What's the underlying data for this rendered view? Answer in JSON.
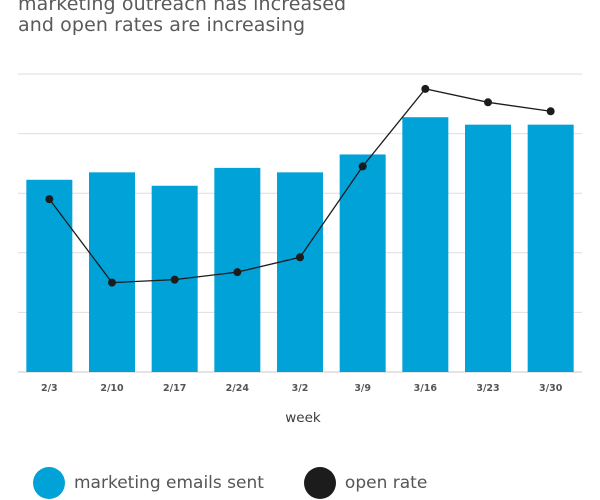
{
  "chart_data": {
    "type": "bar",
    "title_lines": [
      "marketing outreach has increased",
      "and open rates are increasing"
    ],
    "xlabel": "week",
    "ylabel": "",
    "categories": [
      "2/3",
      "2/10",
      "2/17",
      "2/24",
      "3/2",
      "3/9",
      "3/16",
      "3/23",
      "3/30"
    ],
    "ylim": [
      0,
      100
    ],
    "grid": true,
    "legend_position": "bottom",
    "series": [
      {
        "name": "marketing emails sent",
        "type": "bar",
        "color": "#00a2d8",
        "values": [
          64.5,
          67,
          62.5,
          68.5,
          67,
          73,
          85.5,
          83,
          83
        ]
      },
      {
        "name": "open rate",
        "type": "line",
        "color": "#1c1c1c",
        "values": [
          58,
          30,
          31,
          33.5,
          38.5,
          69,
          95,
          90.5,
          87.5
        ]
      }
    ]
  }
}
